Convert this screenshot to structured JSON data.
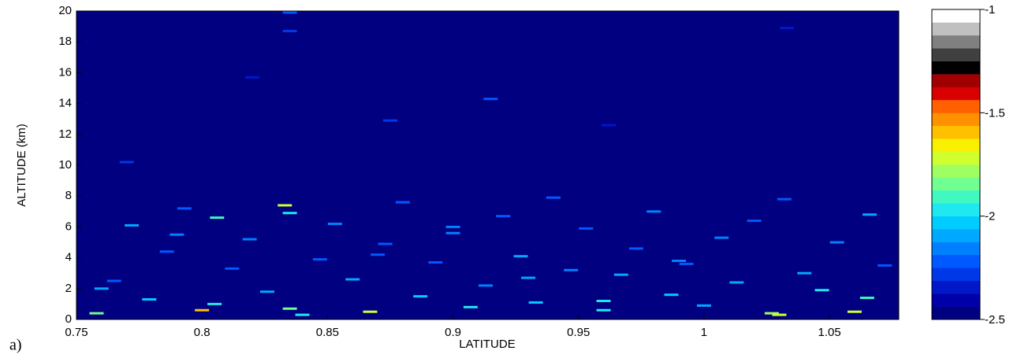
{
  "chart_data": {
    "type": "heatmap",
    "panel_label": "a)",
    "xlabel": "LATITUDE",
    "ylabel": "ALTITUDE (km)",
    "xlim": [
      0.75,
      1.0776
    ],
    "ylim": [
      0,
      20
    ],
    "xticks": [
      0.75,
      0.8,
      0.85,
      0.9,
      0.95,
      1,
      1.05
    ],
    "yticks": [
      0,
      2,
      4,
      6,
      8,
      10,
      12,
      14,
      16,
      18,
      20
    ],
    "x": [
      0.758,
      0.765,
      0.772,
      0.779,
      0.786,
      0.793,
      0.8,
      0.806,
      0.812,
      0.819,
      0.826,
      0.833,
      0.835,
      0.84,
      0.847,
      0.853,
      0.86,
      0.867,
      0.873,
      0.88,
      0.887,
      0.893,
      0.9,
      0.907,
      0.913,
      0.92,
      0.927,
      0.933,
      0.94,
      0.947,
      0.953,
      0.96,
      0.967,
      0.973,
      0.98,
      0.987,
      0.993,
      1.0,
      1.007,
      1.013,
      1.02,
      1.027,
      1.032,
      1.04,
      1.047,
      1.053,
      1.06,
      1.066,
      1.072,
      0.76,
      0.79,
      0.805,
      0.835,
      0.87,
      0.9,
      0.93,
      0.96,
      0.99,
      1.03,
      1.065,
      0.77,
      0.875,
      0.915,
      0.82,
      0.835,
      0.835,
      0.962,
      1.033
    ],
    "y": [
      0.4,
      2.5,
      6.1,
      1.3,
      4.4,
      7.2,
      0.6,
      6.6,
      3.3,
      5.2,
      1.8,
      7.4,
      6.9,
      0.3,
      3.9,
      6.2,
      2.6,
      0.5,
      4.9,
      7.6,
      1.5,
      3.7,
      5.6,
      0.8,
      2.2,
      6.7,
      4.1,
      1.1,
      7.9,
      3.2,
      5.9,
      0.6,
      2.9,
      4.6,
      7.0,
      1.6,
      3.6,
      0.9,
      5.3,
      2.4,
      6.4,
      0.4,
      7.8,
      3.0,
      1.9,
      5.0,
      0.5,
      6.8,
      3.5,
      2.0,
      5.5,
      1.0,
      0.7,
      4.2,
      6.0,
      2.7,
      1.2,
      3.8,
      0.3,
      1.4,
      10.2,
      12.9,
      14.3,
      15.7,
      18.7,
      19.9,
      12.6,
      18.9
    ],
    "values": [
      -1.85,
      -2.2,
      -2.1,
      -2.05,
      -2.2,
      -2.25,
      -1.6,
      -1.9,
      -2.2,
      -2.15,
      -2.1,
      -1.75,
      -1.95,
      -2.0,
      -2.2,
      -2.15,
      -2.1,
      -1.7,
      -2.2,
      -2.25,
      -2.05,
      -2.2,
      -2.15,
      -2.0,
      -2.15,
      -2.2,
      -2.1,
      -2.05,
      -2.25,
      -2.15,
      -2.2,
      -2.0,
      -2.1,
      -2.2,
      -2.15,
      -2.05,
      -2.2,
      -2.1,
      -2.15,
      -2.1,
      -2.2,
      -1.8,
      -2.25,
      -2.1,
      -2.0,
      -2.15,
      -1.75,
      -2.1,
      -2.2,
      -2.1,
      -2.15,
      -2.0,
      -1.85,
      -2.2,
      -2.15,
      -2.1,
      -2.0,
      -2.15,
      -1.7,
      -1.9,
      -2.3,
      -2.3,
      -2.25,
      -2.35,
      -2.3,
      -2.2,
      -2.35,
      -2.35
    ],
    "colorbar": {
      "zlim": [
        -2.5,
        -1
      ],
      "ticks": [
        -1,
        -1.5,
        -2,
        -2.5
      ],
      "colors": [
        "#000080",
        "#0000a8",
        "#0018c8",
        "#0038e8",
        "#0058ff",
        "#0080ff",
        "#00a8ff",
        "#00ccff",
        "#20e8f0",
        "#40f8c0",
        "#70ff90",
        "#a0ff60",
        "#d0ff30",
        "#f8f000",
        "#ffc000",
        "#ff9000",
        "#ff6000",
        "#d80000",
        "#a00000",
        "#000000",
        "#404040",
        "#808080",
        "#c0c0c0",
        "#ffffff"
      ]
    }
  }
}
